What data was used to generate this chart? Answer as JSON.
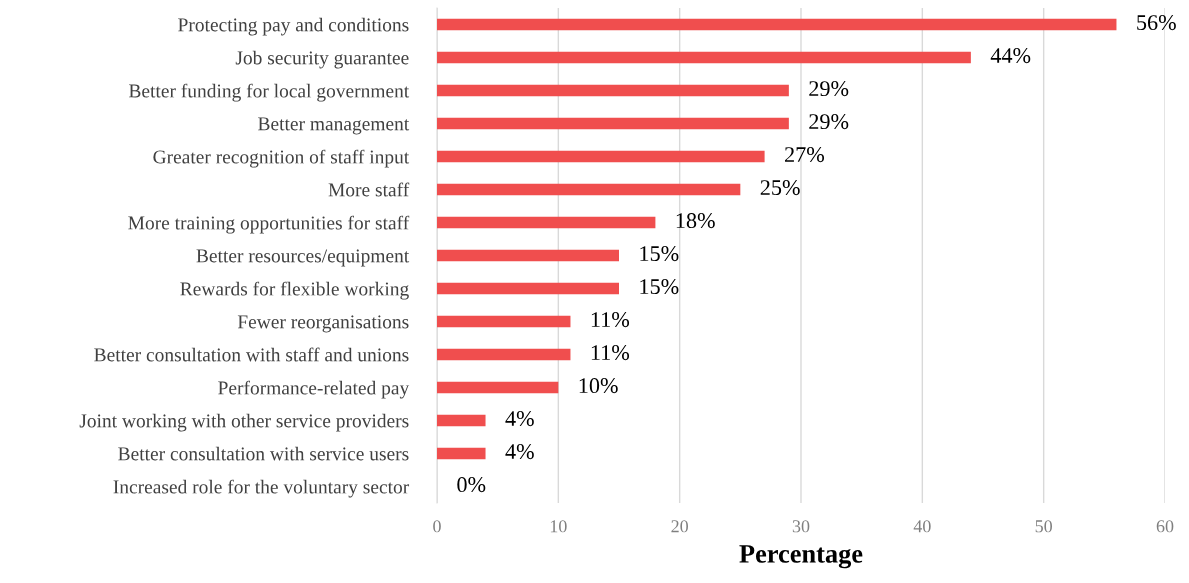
{
  "chart_data": {
    "type": "bar",
    "orientation": "horizontal",
    "xlabel": "Percentage",
    "categories": [
      "Protecting pay and conditions",
      "Job security guarantee",
      "Better funding for local government",
      "Better management",
      "Greater recognition of staff input",
      "More staff",
      "More training opportunities for staff",
      "Better resources/equipment",
      "Rewards for flexible working",
      "Fewer reorganisations",
      "Better consultation with staff and unions",
      "Performance-related pay",
      "Joint working with other service providers",
      "Better consultation with service users",
      "Increased role for the voluntary sector"
    ],
    "values": [
      56,
      44,
      29,
      29,
      27,
      25,
      18,
      15,
      15,
      11,
      11,
      10,
      4,
      4,
      0
    ],
    "value_labels": [
      "56%",
      "44%",
      "29%",
      "29%",
      "27%",
      "25%",
      "18%",
      "15%",
      "15%",
      "11%",
      "11%",
      "10%",
      "4%",
      "4%",
      "0%"
    ],
    "color": "#f04e4e",
    "xlim": [
      0,
      60
    ],
    "xticks": [
      0,
      10,
      20,
      30,
      40,
      50,
      60
    ],
    "grid": "x"
  }
}
